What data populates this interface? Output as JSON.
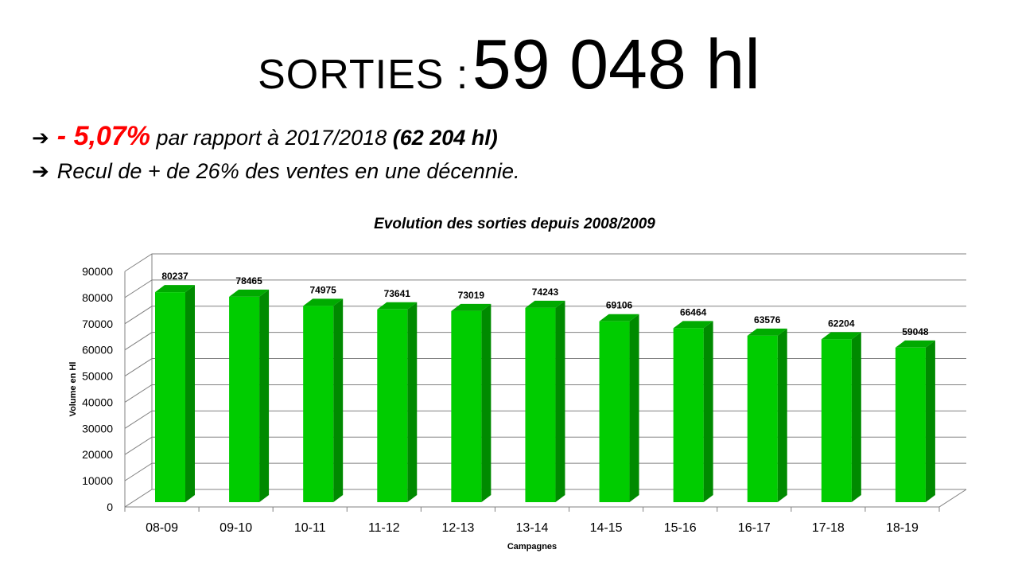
{
  "header": {
    "label": "SORTIES :",
    "value": "59 048 hl"
  },
  "bullets": {
    "first": {
      "arrow": "➔",
      "change": "- 5,07%",
      "text": " par rapport à 2017/2018 ",
      "ref": "(62 204 hl)"
    },
    "second": {
      "arrow": "➔",
      "text": "Recul de + de 26% des ventes en une décennie."
    }
  },
  "colors": {
    "bar_front": "#00cc00",
    "bar_side": "#008a00",
    "bar_top": "#00aa00",
    "highlight": "#ff0000",
    "grid": "#808080"
  },
  "chart_data": {
    "type": "bar",
    "title": "Evolution des sorties depuis 2008/2009",
    "xlabel": "Campagnes",
    "ylabel": "Volume en Hl",
    "categories": [
      "08-09",
      "09-10",
      "10-11",
      "11-12",
      "12-13",
      "13-14",
      "14-15",
      "15-16",
      "16-17",
      "17-18",
      "18-19"
    ],
    "values": [
      80237,
      78465,
      74975,
      73641,
      73019,
      74243,
      69106,
      66464,
      63576,
      62204,
      59048
    ],
    "ylim": [
      0,
      90000
    ],
    "yticks": [
      0,
      10000,
      20000,
      30000,
      40000,
      50000,
      60000,
      70000,
      80000,
      90000
    ],
    "grid": true,
    "style": "3d-column",
    "data_labels": true
  }
}
